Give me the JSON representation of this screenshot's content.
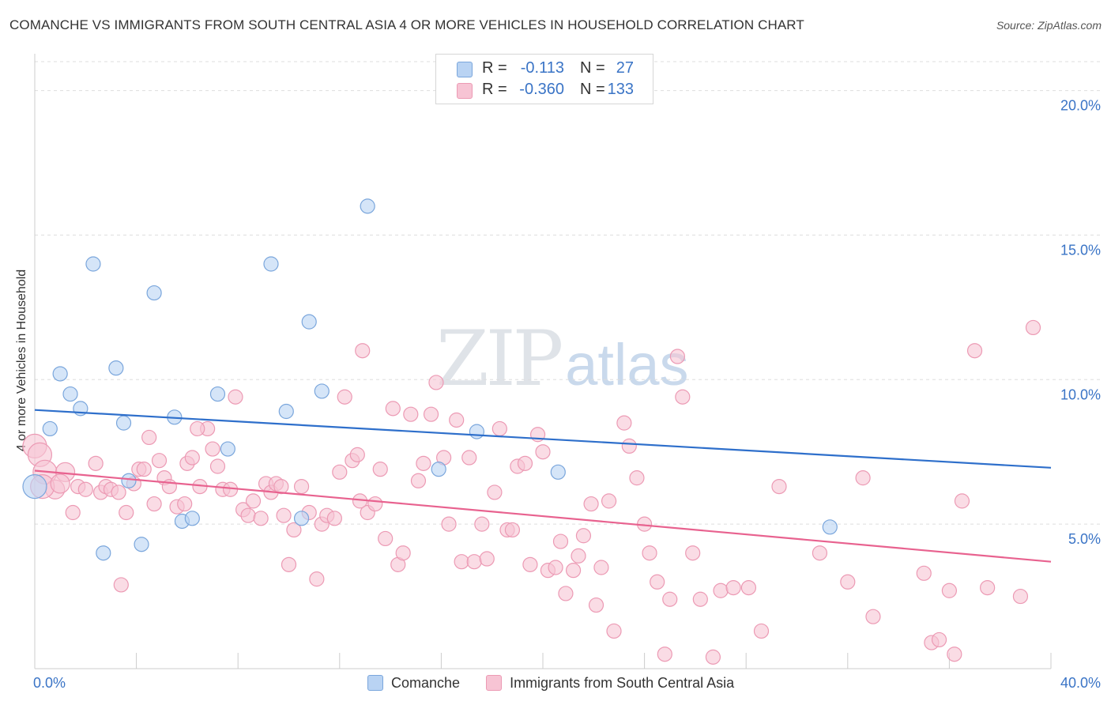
{
  "header": {
    "title": "COMANCHE VS IMMIGRANTS FROM SOUTH CENTRAL ASIA 4 OR MORE VEHICLES IN HOUSEHOLD CORRELATION CHART",
    "source": "Source: ZipAtlas.com"
  },
  "watermark": {
    "zip": "ZIP",
    "atlas": "atlas"
  },
  "legend": {
    "series": [
      {
        "r_label": "R =",
        "r_value": "-0.113",
        "n_label": "N =",
        "n_value": "27"
      },
      {
        "r_label": "R =",
        "r_value": "-0.360",
        "n_label": "N =",
        "n_value": "133"
      }
    ]
  },
  "colors": {
    "blue_fill": "#b9d3f3",
    "blue_stroke": "#7aa6dc",
    "blue_line": "#2e6fcb",
    "pink_fill": "#f7c4d4",
    "pink_stroke": "#ec9ab4",
    "pink_line": "#e8628f",
    "tick_text": "#3a74c6",
    "grid": "#dddddd"
  },
  "chart_data": {
    "type": "scatter",
    "title": "COMANCHE VS IMMIGRANTS FROM SOUTH CENTRAL ASIA 4 OR MORE VEHICLES IN HOUSEHOLD CORRELATION CHART",
    "xlabel": "",
    "ylabel": "4 or more Vehicles in Household",
    "xlim": [
      0,
      40
    ],
    "ylim": [
      0,
      21
    ],
    "y_ticks": [
      5,
      10,
      15,
      20
    ],
    "y_tick_labels": [
      "5.0%",
      "10.0%",
      "15.0%",
      "20.0%"
    ],
    "x_tick_labels": [
      "0.0%",
      "40.0%"
    ],
    "legend_position": "top-center",
    "series": [
      {
        "name": "Comanche",
        "r": -0.113,
        "n": 27,
        "trend": [
          [
            0,
            8.95
          ],
          [
            40,
            6.95
          ]
        ],
        "points": [
          [
            0.0,
            6.3
          ],
          [
            0.6,
            8.3
          ],
          [
            1.0,
            10.2
          ],
          [
            1.4,
            9.5
          ],
          [
            1.8,
            9.0
          ],
          [
            2.3,
            14.0
          ],
          [
            2.7,
            4.0
          ],
          [
            3.2,
            10.4
          ],
          [
            3.5,
            8.5
          ],
          [
            3.7,
            6.5
          ],
          [
            4.2,
            4.3
          ],
          [
            4.7,
            13.0
          ],
          [
            5.5,
            8.7
          ],
          [
            5.8,
            5.1
          ],
          [
            6.2,
            5.2
          ],
          [
            7.2,
            9.5
          ],
          [
            7.6,
            7.6
          ],
          [
            9.3,
            14.0
          ],
          [
            9.9,
            8.9
          ],
          [
            10.5,
            5.2
          ],
          [
            10.8,
            12.0
          ],
          [
            11.3,
            9.6
          ],
          [
            13.1,
            16.0
          ],
          [
            15.9,
            6.9
          ],
          [
            17.4,
            8.2
          ],
          [
            20.6,
            6.8
          ],
          [
            31.3,
            4.9
          ]
        ]
      },
      {
        "name": "Immigrants from South Central Asia",
        "r": -0.36,
        "n": 133,
        "trend": [
          [
            0,
            6.85
          ],
          [
            40,
            3.7
          ]
        ],
        "points": [
          [
            0.0,
            7.7
          ],
          [
            0.2,
            7.4
          ],
          [
            0.4,
            6.8
          ],
          [
            0.8,
            6.2
          ],
          [
            1.2,
            6.8
          ],
          [
            1.5,
            5.4
          ],
          [
            1.7,
            6.3
          ],
          [
            2.0,
            6.2
          ],
          [
            2.4,
            7.1
          ],
          [
            2.6,
            6.1
          ],
          [
            2.8,
            6.3
          ],
          [
            3.0,
            6.2
          ],
          [
            3.3,
            6.1
          ],
          [
            3.4,
            2.9
          ],
          [
            3.6,
            5.4
          ],
          [
            3.9,
            6.4
          ],
          [
            4.1,
            6.9
          ],
          [
            4.3,
            6.9
          ],
          [
            4.5,
            8.0
          ],
          [
            4.7,
            5.7
          ],
          [
            4.9,
            7.2
          ],
          [
            5.1,
            6.6
          ],
          [
            5.3,
            6.3
          ],
          [
            5.6,
            5.6
          ],
          [
            5.9,
            5.7
          ],
          [
            6.0,
            7.1
          ],
          [
            6.2,
            7.3
          ],
          [
            6.5,
            6.3
          ],
          [
            6.8,
            8.3
          ],
          [
            7.0,
            7.6
          ],
          [
            7.2,
            7.0
          ],
          [
            7.4,
            6.2
          ],
          [
            7.7,
            6.2
          ],
          [
            7.9,
            9.4
          ],
          [
            8.2,
            5.5
          ],
          [
            8.4,
            5.3
          ],
          [
            8.6,
            5.8
          ],
          [
            8.9,
            5.2
          ],
          [
            9.1,
            6.4
          ],
          [
            9.3,
            6.1
          ],
          [
            9.5,
            6.4
          ],
          [
            9.8,
            5.3
          ],
          [
            10.0,
            3.6
          ],
          [
            10.2,
            4.8
          ],
          [
            10.5,
            6.3
          ],
          [
            10.8,
            5.4
          ],
          [
            11.1,
            3.1
          ],
          [
            11.3,
            5.0
          ],
          [
            11.5,
            5.3
          ],
          [
            11.8,
            5.2
          ],
          [
            12.0,
            6.8
          ],
          [
            12.2,
            9.4
          ],
          [
            12.5,
            7.2
          ],
          [
            12.7,
            7.4
          ],
          [
            12.9,
            11.0
          ],
          [
            13.1,
            5.4
          ],
          [
            13.4,
            5.7
          ],
          [
            13.6,
            6.9
          ],
          [
            13.8,
            4.5
          ],
          [
            14.1,
            9.0
          ],
          [
            14.3,
            3.6
          ],
          [
            14.5,
            4.0
          ],
          [
            14.8,
            8.8
          ],
          [
            15.1,
            6.5
          ],
          [
            15.3,
            7.1
          ],
          [
            15.6,
            8.8
          ],
          [
            15.8,
            9.9
          ],
          [
            16.1,
            7.3
          ],
          [
            16.3,
            5.0
          ],
          [
            16.6,
            8.6
          ],
          [
            16.8,
            3.7
          ],
          [
            17.1,
            7.3
          ],
          [
            17.3,
            3.7
          ],
          [
            17.6,
            5.0
          ],
          [
            17.8,
            3.8
          ],
          [
            18.1,
            6.1
          ],
          [
            18.3,
            8.3
          ],
          [
            18.6,
            4.8
          ],
          [
            18.8,
            4.8
          ],
          [
            19.0,
            7.0
          ],
          [
            19.3,
            7.1
          ],
          [
            19.5,
            3.6
          ],
          [
            19.8,
            8.1
          ],
          [
            20.0,
            7.5
          ],
          [
            20.2,
            3.4
          ],
          [
            20.5,
            3.5
          ],
          [
            20.7,
            4.4
          ],
          [
            20.9,
            2.6
          ],
          [
            21.2,
            3.4
          ],
          [
            21.4,
            3.9
          ],
          [
            21.6,
            4.6
          ],
          [
            21.9,
            5.7
          ],
          [
            22.1,
            2.2
          ],
          [
            22.3,
            3.5
          ],
          [
            22.6,
            5.8
          ],
          [
            22.8,
            1.3
          ],
          [
            23.2,
            8.5
          ],
          [
            23.4,
            7.7
          ],
          [
            23.7,
            6.6
          ],
          [
            24.0,
            5.0
          ],
          [
            24.2,
            4.0
          ],
          [
            24.5,
            3.0
          ],
          [
            24.8,
            0.5
          ],
          [
            25.0,
            2.4
          ],
          [
            25.3,
            10.8
          ],
          [
            25.5,
            9.4
          ],
          [
            25.9,
            4.0
          ],
          [
            26.2,
            2.4
          ],
          [
            26.7,
            0.4
          ],
          [
            27.0,
            2.7
          ],
          [
            27.5,
            2.8
          ],
          [
            28.1,
            2.8
          ],
          [
            28.6,
            1.3
          ],
          [
            29.3,
            6.3
          ],
          [
            30.9,
            4.0
          ],
          [
            32.0,
            3.0
          ],
          [
            32.6,
            6.6
          ],
          [
            33.0,
            1.8
          ],
          [
            35.0,
            3.3
          ],
          [
            35.3,
            0.9
          ],
          [
            35.6,
            1.0
          ],
          [
            36.0,
            2.7
          ],
          [
            36.2,
            0.5
          ],
          [
            36.5,
            5.8
          ],
          [
            37.0,
            11.0
          ],
          [
            37.5,
            2.8
          ],
          [
            38.8,
            2.5
          ],
          [
            39.3,
            11.8
          ],
          [
            0.3,
            6.3
          ],
          [
            1.0,
            6.4
          ],
          [
            6.4,
            8.3
          ],
          [
            9.7,
            6.3
          ],
          [
            12.8,
            5.8
          ]
        ]
      }
    ]
  },
  "bottom_legend": {
    "items": [
      {
        "label": "Comanche"
      },
      {
        "label": "Immigrants from South Central Asia"
      }
    ]
  }
}
